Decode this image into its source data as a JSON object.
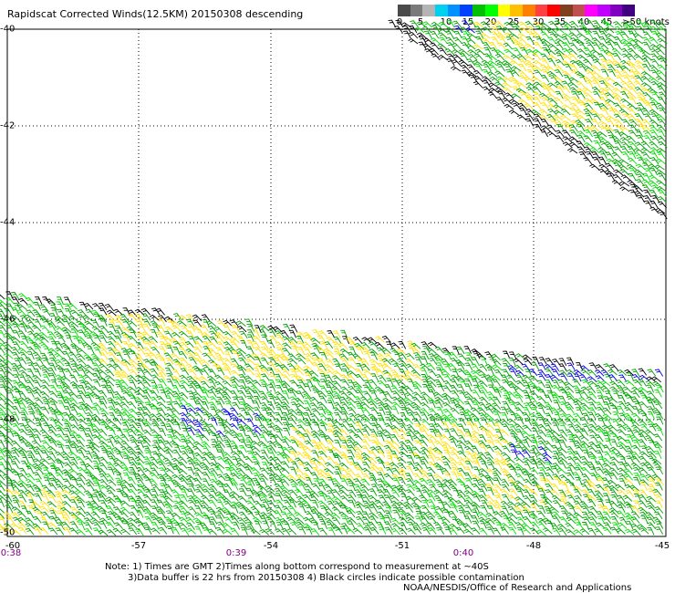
{
  "title": "Rapidscat Corrected Winds(12.5KM) 20150308 descending",
  "legend": {
    "colors": [
      "#4a4a4a",
      "#7a7a7a",
      "#b4b4b4",
      "#00d0f0",
      "#0090ff",
      "#0040ff",
      "#00c000",
      "#00ff00",
      "#ffff00",
      "#ffc000",
      "#ff8000",
      "#ff4040",
      "#ff0000",
      "#804020",
      "#c05050",
      "#ff00ff",
      "#c000ff",
      "#8000c0",
      "#400080"
    ],
    "labels": [
      "0",
      "5",
      "10",
      "15",
      "20",
      "25",
      "30",
      "35",
      "40",
      "45",
      ">50 knots"
    ]
  },
  "map": {
    "lat_labels": [
      "-40",
      "-42",
      "-44",
      "-46",
      "-48",
      "-50"
    ],
    "lon_labels": [
      "-60",
      "-57",
      "-54",
      "-51",
      "-48",
      "-45"
    ],
    "time_labels": [
      "0:38",
      "0:39",
      "0:40"
    ]
  },
  "barb_colors": {
    "black": "#000000",
    "green": "#00a000",
    "bright_green": "#00e000",
    "yellow": "#ffe000",
    "orange": "#ff9000",
    "blue": "#0000e0"
  },
  "notes": {
    "line1": "Note: 1) Times are GMT 2)Times along bottom correspond to measurement at ~40S",
    "line2": "3)Data buffer is 22 hrs from 20150308 4) Black circles indicate possible contamination",
    "line3": "NOAA/NESDIS/Office of Research and Applications"
  }
}
